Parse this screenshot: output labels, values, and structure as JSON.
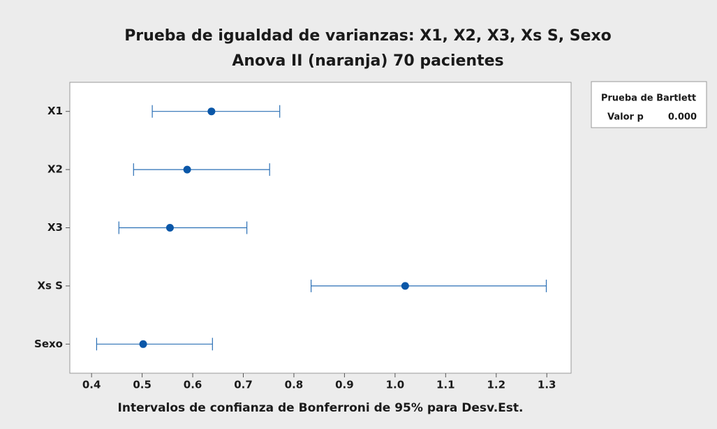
{
  "chart_data": {
    "type": "interval",
    "title": "Prueba de igualdad de varianzas: X1, X2, X3, Xs S, Sexo",
    "subtitle": "Anova II (naranja) 70 pacientes",
    "xlabel": "Intervalos de confianza de Bonferroni de 95% para Desv.Est.",
    "categories": [
      "X1",
      "X2",
      "X3",
      "Xs S",
      "Sexo"
    ],
    "values": [
      0.637,
      0.589,
      0.555,
      1.02,
      0.502
    ],
    "lower": [
      0.52,
      0.483,
      0.454,
      0.834,
      0.41
    ],
    "upper": [
      0.772,
      0.752,
      0.707,
      1.299,
      0.639
    ],
    "color": "#0a57a8",
    "xlim": [
      0.357,
      1.348
    ],
    "xticks": [
      0.4,
      0.5,
      0.6,
      0.7,
      0.8,
      0.9,
      {
        "value": 1.0,
        "label": "1.0"
      },
      1.1,
      1.2,
      1.3
    ],
    "test": {
      "title": "Prueba de Bartlett",
      "label": "Valor p",
      "value": "0.000"
    }
  }
}
